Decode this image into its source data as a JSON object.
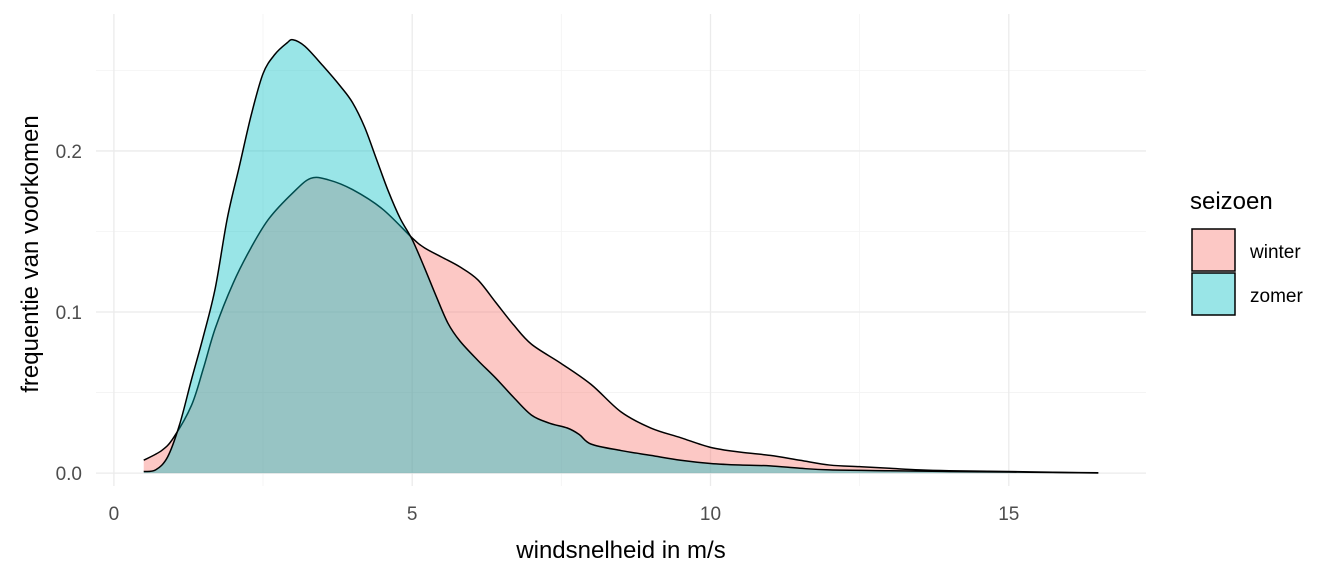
{
  "chart_data": {
    "type": "area",
    "subtype": "density",
    "title": "",
    "xlabel": "windsnelheid in m/s",
    "ylabel": "frequentie van voorkomen",
    "xlim": [
      -0.3,
      17.3
    ],
    "ylim": [
      -0.008,
      0.285
    ],
    "x_ticks": [
      0,
      5,
      10,
      15
    ],
    "x_tick_labels": [
      "0",
      "5",
      "10",
      "15"
    ],
    "y_ticks": [
      0.0,
      0.1,
      0.2
    ],
    "y_tick_labels": [
      "0.0",
      "0.1",
      "0.2"
    ],
    "grid": true,
    "legend": {
      "title": "seizoen",
      "position": "right"
    },
    "series": [
      {
        "name": "winter",
        "color": "#F8766D",
        "points": [
          [
            0.5,
            0.008
          ],
          [
            0.8,
            0.014
          ],
          [
            1.0,
            0.022
          ],
          [
            1.3,
            0.042
          ],
          [
            1.5,
            0.065
          ],
          [
            1.7,
            0.09
          ],
          [
            2.0,
            0.118
          ],
          [
            2.3,
            0.14
          ],
          [
            2.6,
            0.158
          ],
          [
            3.0,
            0.174
          ],
          [
            3.3,
            0.183
          ],
          [
            3.6,
            0.182
          ],
          [
            4.0,
            0.176
          ],
          [
            4.5,
            0.164
          ],
          [
            5.0,
            0.146
          ],
          [
            5.2,
            0.14
          ],
          [
            5.5,
            0.134
          ],
          [
            5.8,
            0.128
          ],
          [
            6.1,
            0.12
          ],
          [
            6.4,
            0.106
          ],
          [
            6.7,
            0.092
          ],
          [
            7.0,
            0.08
          ],
          [
            7.5,
            0.068
          ],
          [
            8.0,
            0.055
          ],
          [
            8.5,
            0.038
          ],
          [
            9.0,
            0.028
          ],
          [
            9.5,
            0.022
          ],
          [
            10.0,
            0.016
          ],
          [
            10.5,
            0.013
          ],
          [
            11.0,
            0.011
          ],
          [
            11.5,
            0.008
          ],
          [
            12.0,
            0.005
          ],
          [
            12.5,
            0.004
          ],
          [
            13.0,
            0.003
          ],
          [
            13.5,
            0.002
          ],
          [
            14.0,
            0.0015
          ],
          [
            15.0,
            0.001
          ],
          [
            16.0,
            0.0004
          ],
          [
            16.5,
            0.0002
          ]
        ]
      },
      {
        "name": "zomer",
        "color": "#00BFC4",
        "points": [
          [
            0.5,
            0.001
          ],
          [
            0.7,
            0.002
          ],
          [
            0.9,
            0.01
          ],
          [
            1.1,
            0.03
          ],
          [
            1.3,
            0.058
          ],
          [
            1.5,
            0.085
          ],
          [
            1.7,
            0.115
          ],
          [
            1.9,
            0.158
          ],
          [
            2.1,
            0.19
          ],
          [
            2.3,
            0.222
          ],
          [
            2.5,
            0.248
          ],
          [
            2.7,
            0.26
          ],
          [
            2.9,
            0.267
          ],
          [
            3.0,
            0.269
          ],
          [
            3.2,
            0.265
          ],
          [
            3.5,
            0.253
          ],
          [
            3.8,
            0.24
          ],
          [
            4.0,
            0.23
          ],
          [
            4.2,
            0.215
          ],
          [
            4.4,
            0.195
          ],
          [
            4.6,
            0.175
          ],
          [
            4.8,
            0.158
          ],
          [
            5.0,
            0.145
          ],
          [
            5.2,
            0.128
          ],
          [
            5.4,
            0.11
          ],
          [
            5.6,
            0.093
          ],
          [
            5.8,
            0.082
          ],
          [
            6.1,
            0.07
          ],
          [
            6.4,
            0.059
          ],
          [
            6.7,
            0.047
          ],
          [
            7.0,
            0.036
          ],
          [
            7.3,
            0.031
          ],
          [
            7.6,
            0.028
          ],
          [
            7.8,
            0.024
          ],
          [
            8.0,
            0.018
          ],
          [
            8.5,
            0.014
          ],
          [
            9.0,
            0.011
          ],
          [
            9.5,
            0.008
          ],
          [
            10.0,
            0.006
          ],
          [
            10.5,
            0.005
          ],
          [
            11.0,
            0.0045
          ],
          [
            11.5,
            0.003
          ],
          [
            12.0,
            0.002
          ],
          [
            13.0,
            0.0015
          ],
          [
            14.0,
            0.001
          ],
          [
            15.0,
            0.0007
          ],
          [
            16.0,
            0.0003
          ],
          [
            16.5,
            0.0001
          ]
        ]
      }
    ]
  }
}
